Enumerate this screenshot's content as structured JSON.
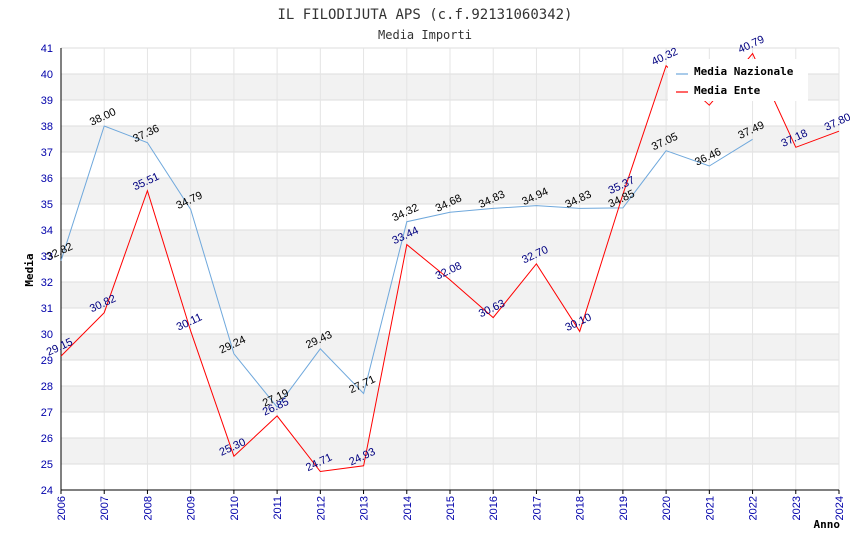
{
  "chart_data": {
    "type": "line",
    "title": "IL FILODIJUTA APS (c.f.92131060342)",
    "subtitle": "Media Importi",
    "xlabel": "Anno",
    "ylabel": "Media",
    "ylim": [
      24,
      41
    ],
    "yticks": [
      24,
      25,
      26,
      27,
      28,
      29,
      30,
      31,
      32,
      33,
      34,
      35,
      36,
      37,
      38,
      39,
      40,
      41
    ],
    "categories": [
      "2006",
      "2007",
      "2008",
      "2009",
      "2010",
      "2011",
      "2012",
      "2013",
      "2014",
      "2015",
      "2016",
      "2017",
      "2018",
      "2019",
      "2020",
      "2021",
      "2022",
      "2023",
      "2024"
    ],
    "legend_position": "top-right",
    "series": [
      {
        "name": "Media Nazionale",
        "color": "#6fa8dc",
        "values": [
          32.82,
          38.0,
          37.36,
          34.79,
          29.24,
          27.19,
          29.43,
          27.71,
          34.32,
          34.68,
          34.83,
          34.94,
          34.83,
          34.85,
          37.05,
          36.46,
          37.49,
          null,
          null
        ],
        "labels": [
          "32.82",
          "38.00",
          "37.36",
          "34.79",
          "29.24",
          "27.19",
          "29.43",
          "27.71",
          "34.32",
          "34.68",
          "34.83",
          "34.94",
          "34.83",
          "34.85",
          "37.05",
          "36.46",
          "37.49",
          null,
          null
        ]
      },
      {
        "name": "Media Ente",
        "color": "#ff0000",
        "values": [
          29.15,
          30.82,
          35.51,
          30.11,
          25.3,
          26.85,
          24.71,
          24.93,
          33.44,
          32.08,
          30.63,
          32.7,
          30.1,
          35.37,
          40.32,
          38.8,
          40.79,
          37.18,
          37.8
        ],
        "labels": [
          "29.15",
          "30.82",
          "35.51",
          "30.11",
          "25.30",
          "26.85",
          "24.71",
          "24.93",
          "33.44",
          "32.08",
          "30.63",
          "32.70",
          "30.10",
          "35.37",
          "40.32",
          null,
          "40.79",
          "37.18",
          "37.80"
        ]
      }
    ]
  },
  "colors": {
    "band": "#f2f2f2",
    "tick_text": "#0000aa",
    "axis": "#000000"
  }
}
